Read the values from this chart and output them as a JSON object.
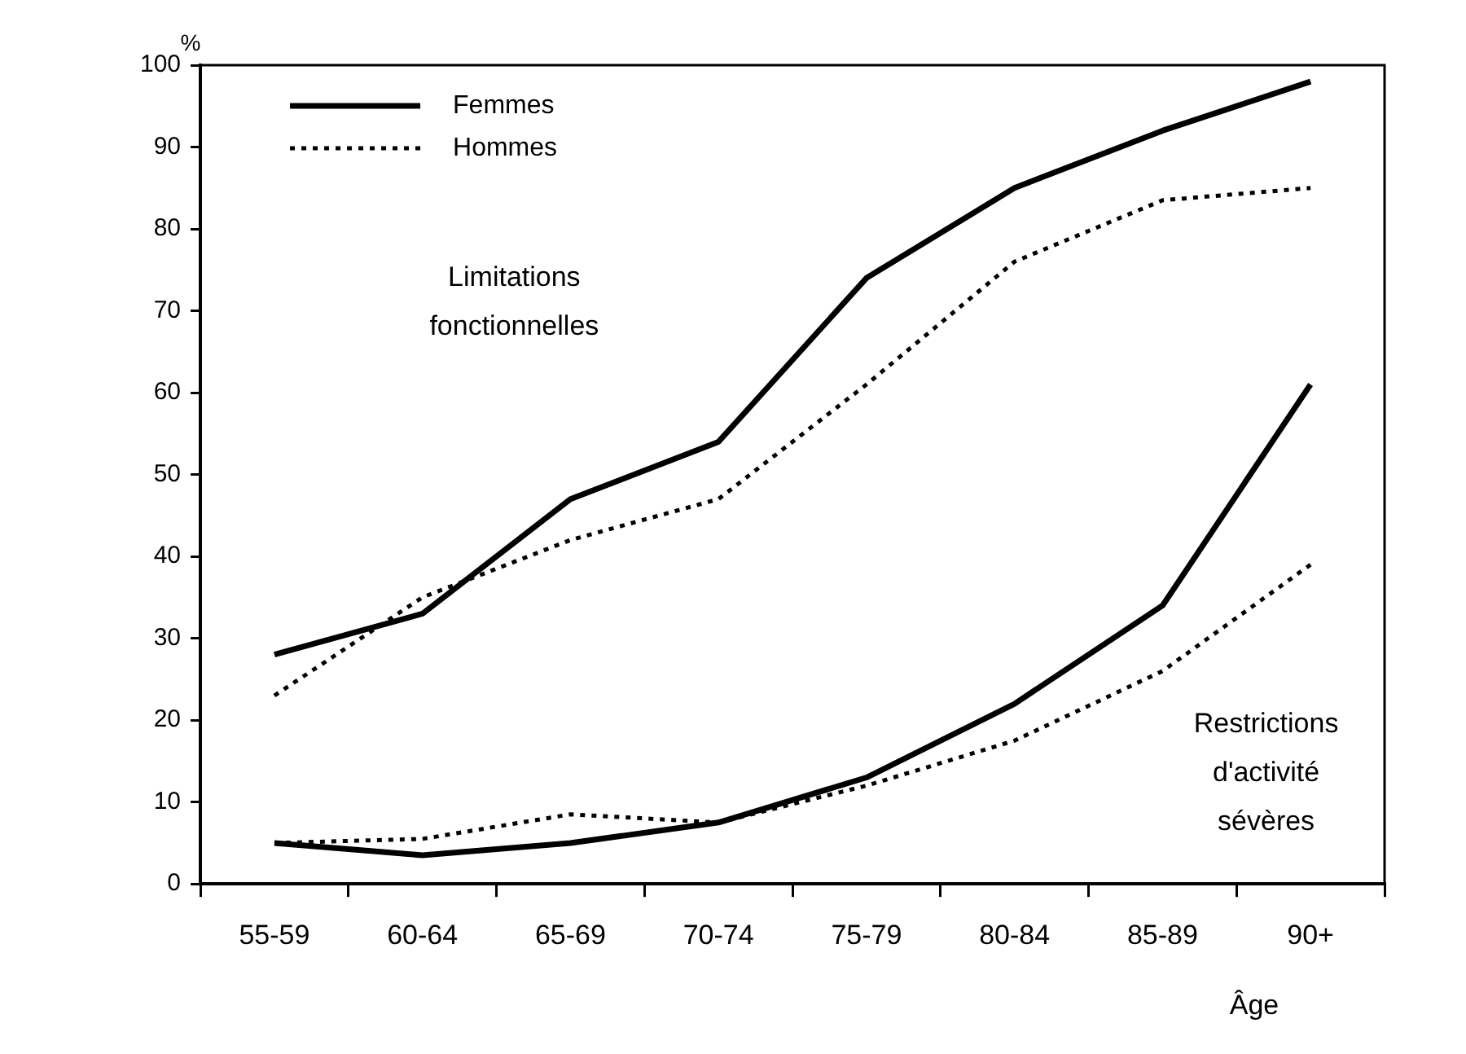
{
  "chart_data": {
    "type": "line",
    "xlabel": "Âge",
    "ylabel": "%",
    "categories": [
      "55-59",
      "60-64",
      "65-69",
      "70-74",
      "75-79",
      "80-84",
      "85-89",
      "90+"
    ],
    "ylim": [
      0,
      100
    ],
    "yticks": [
      0,
      10,
      20,
      30,
      40,
      50,
      60,
      70,
      80,
      90,
      100
    ],
    "grid": false,
    "legend": "top left",
    "marker": "none",
    "series": [
      {
        "name": "Femmes",
        "color": "#000000",
        "line_style": "solid",
        "values": [
          28,
          33,
          47,
          54,
          74,
          85,
          92,
          98
        ]
      },
      {
        "name": "Hommes",
        "color": "#000000",
        "line_style": "dotted",
        "values": [
          23,
          35,
          42,
          47,
          61,
          76,
          83.5,
          85
        ]
      },
      {
        "color": "#000000",
        "line_style": "solid",
        "values": [
          5,
          3.5,
          5,
          7.5,
          13,
          22,
          34,
          61
        ]
      },
      {
        "color": "#000000",
        "line_style": "dotted",
        "values": [
          5,
          5.5,
          8.5,
          7.5,
          12,
          17.5,
          26,
          39
        ]
      }
    ],
    "annotations": [
      "Limitations\nfonctionnelles",
      "Restrictions\nd'activité\nsévères"
    ]
  }
}
